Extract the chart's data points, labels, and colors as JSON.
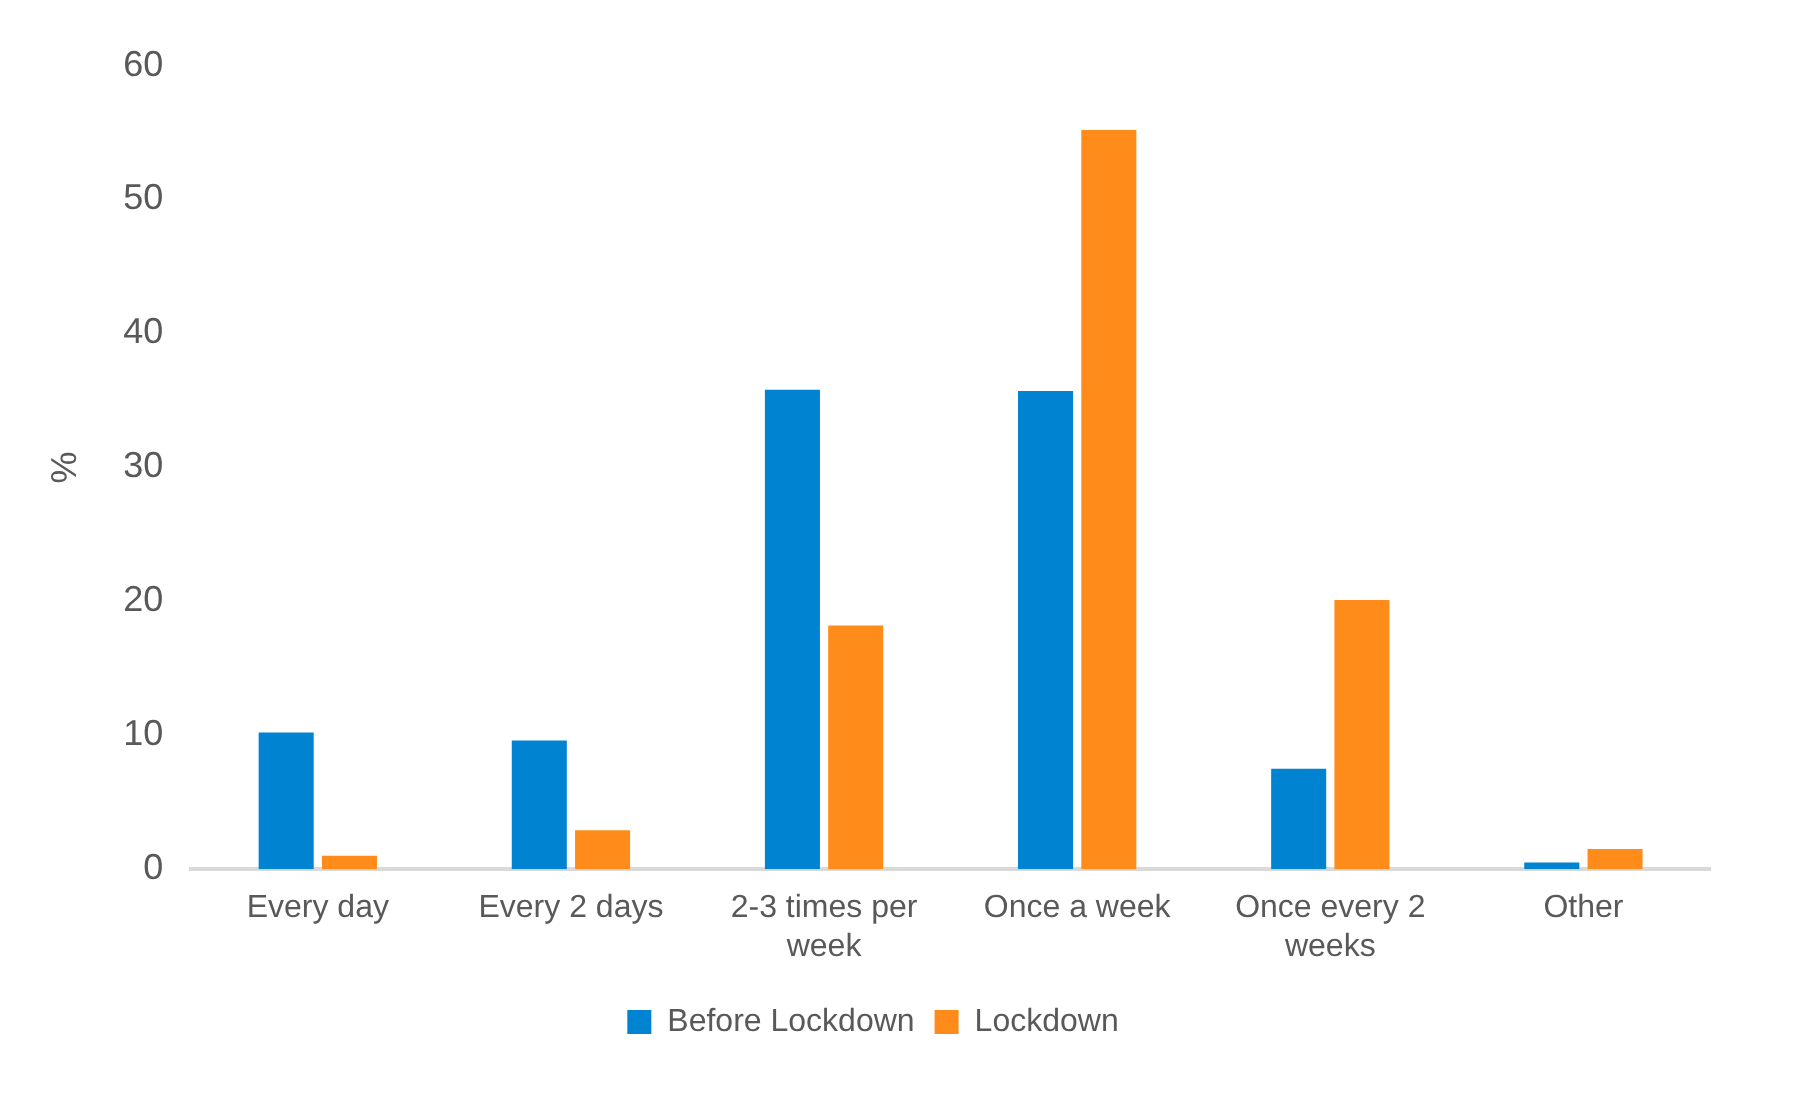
{
  "chart_data": {
    "type": "bar",
    "ylabel": "%",
    "categories": [
      "Every day",
      "Every 2 days",
      "2-3 times per week",
      "Once a week",
      "Once every 2 weeks",
      "Other"
    ],
    "series": [
      {
        "name": "Before Lockdown",
        "color": "#0084d1",
        "values": [
          10.2,
          9.6,
          35.8,
          35.7,
          7.5,
          0.5
        ]
      },
      {
        "name": "Lockdown",
        "color": "#ff8c1a",
        "values": [
          1.0,
          2.9,
          18.2,
          55.2,
          20.1,
          1.5
        ]
      }
    ],
    "ylim": [
      0,
      60
    ],
    "yticks": [
      0,
      10,
      20,
      30,
      40,
      50,
      60
    ],
    "grid": false,
    "legend": "bottom"
  }
}
